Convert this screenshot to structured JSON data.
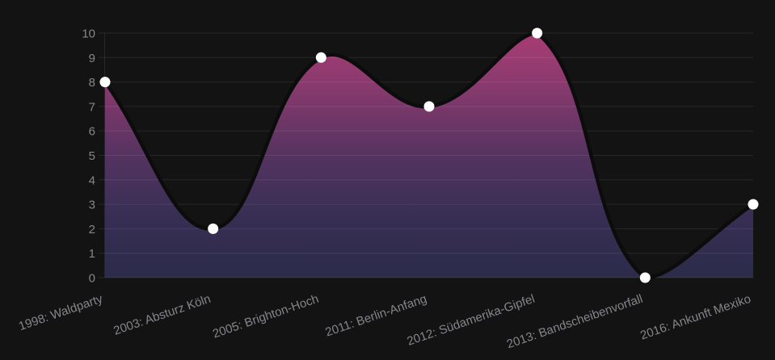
{
  "chart_data": {
    "type": "area",
    "title": "",
    "categories": [
      "1998: Waldparty",
      "2003: Absturz Köln",
      "2005: Brighton-Hoch",
      "2011: Berlin-Anfang",
      "2012: Südamerika-Gipfel",
      "2013: Bandscheibenvorfall",
      "2016: Ankunft Mexiko"
    ],
    "values": [
      8,
      2,
      9,
      7,
      10,
      0,
      3
    ],
    "ylim": [
      0,
      10
    ],
    "yticks": [
      0,
      1,
      2,
      3,
      4,
      5,
      6,
      7,
      8,
      9,
      10
    ],
    "grid": true,
    "legend": false,
    "line_tension": 0.4,
    "colors": {
      "background": "#131313",
      "line": "#0c0c0c",
      "point_fill": "#ffffff",
      "grid_line": "rgba(255,255,255,0.085)",
      "axis_border": "rgba(255,255,255,0.085)",
      "tick_label": "#85868a",
      "area_gradient_stops": [
        {
          "offset": 0.0,
          "color": "#a83d74"
        },
        {
          "offset": 0.2,
          "color": "#8b3a6e"
        },
        {
          "offset": 0.5,
          "color": "#553360"
        },
        {
          "offset": 0.72,
          "color": "#3a2f55"
        },
        {
          "offset": 1.0,
          "color": "#2b2b4a"
        }
      ]
    }
  }
}
